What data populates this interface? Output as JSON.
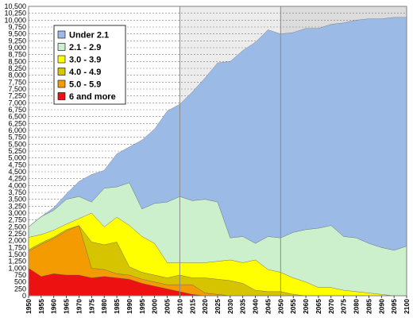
{
  "chart_data": {
    "type": "area",
    "stacked": true,
    "title": "",
    "xlabel": "",
    "ylabel": "",
    "x": [
      1950,
      1955,
      1960,
      1965,
      1970,
      1975,
      1980,
      1985,
      1990,
      1995,
      2000,
      2005,
      2010,
      2015,
      2020,
      2025,
      2030,
      2035,
      2040,
      2045,
      2050,
      2055,
      2060,
      2065,
      2070,
      2075,
      2080,
      2085,
      2090,
      2095,
      2100
    ],
    "xlim": [
      1950,
      2100
    ],
    "ylim": [
      0,
      10500
    ],
    "yticks": [
      "0",
      "250",
      "500",
      "750",
      "1,000",
      "1,250",
      "1,500",
      "1,750",
      "2,000",
      "2,250",
      "2,500",
      "2,750",
      "3,000",
      "3,250",
      "3,500",
      "3,750",
      "4,000",
      "4,250",
      "4,500",
      "4,750",
      "5,000",
      "5,250",
      "5,500",
      "5,750",
      "6,000",
      "6,250",
      "6,500",
      "6,750",
      "7,000",
      "7,250",
      "7,500",
      "7,750",
      "8,000",
      "8,250",
      "8,500",
      "8,750",
      "9,000",
      "9,250",
      "9,500",
      "9,750",
      "10,000",
      "10,250",
      "10,500"
    ],
    "grid": "horizontal-dashed",
    "legend_position": "top-left",
    "shaded_regions": [
      {
        "from": 2010,
        "to": 2050,
        "color": "#ececec"
      },
      {
        "from": 2050,
        "to": 2100,
        "color": "#dcdcdc"
      }
    ],
    "series": [
      {
        "name": "6 and more",
        "color": "#ee1111",
        "values": [
          1000,
          700,
          800,
          750,
          750,
          650,
          700,
          650,
          600,
          450,
          350,
          250,
          150,
          50,
          0,
          0,
          0,
          0,
          0,
          0,
          0,
          0,
          0,
          0,
          0,
          0,
          0,
          0,
          0,
          0,
          0
        ]
      },
      {
        "name": "5.0 - 5.9",
        "color": "#f39b00",
        "values": [
          620,
          1170,
          1280,
          1600,
          1800,
          350,
          250,
          150,
          150,
          150,
          150,
          150,
          250,
          350,
          100,
          50,
          0,
          0,
          0,
          0,
          0,
          0,
          0,
          0,
          0,
          0,
          0,
          0,
          0,
          0,
          0
        ]
      },
      {
        "name": "4.0 - 4.9",
        "color": "#d6c400",
        "values": [
          50,
          50,
          50,
          50,
          0,
          950,
          900,
          1150,
          300,
          250,
          250,
          250,
          350,
          250,
          550,
          550,
          550,
          450,
          200,
          150,
          150,
          50,
          0,
          0,
          0,
          0,
          0,
          0,
          0,
          0,
          0
        ]
      },
      {
        "name": "3.0 - 3.9",
        "color": "#ffff00",
        "values": [
          450,
          300,
          250,
          200,
          250,
          1050,
          650,
          900,
          1500,
          1300,
          1150,
          550,
          450,
          550,
          550,
          650,
          750,
          750,
          1100,
          800,
          700,
          600,
          500,
          300,
          300,
          200,
          150,
          100,
          50,
          0,
          0
        ]
      },
      {
        "name": "2.1 - 2.9",
        "color": "#ccf0cc",
        "values": [
          380,
          650,
          720,
          900,
          800,
          400,
          1400,
          1100,
          1550,
          1000,
          1450,
          2200,
          2400,
          2250,
          2300,
          2150,
          800,
          950,
          600,
          1200,
          1250,
          1650,
          1900,
          2150,
          2250,
          1950,
          1950,
          1800,
          1700,
          1650,
          1800
        ]
      },
      {
        "name": "Under 2.1",
        "color": "#9bbbe6",
        "values": [
          0,
          0,
          100,
          200,
          550,
          1000,
          650,
          1200,
          1300,
          2500,
          2700,
          3300,
          3350,
          3950,
          4400,
          5050,
          6400,
          6750,
          7300,
          7500,
          7400,
          7250,
          7300,
          7250,
          7300,
          7750,
          7900,
          8150,
          8300,
          8450,
          8300
        ]
      }
    ]
  }
}
